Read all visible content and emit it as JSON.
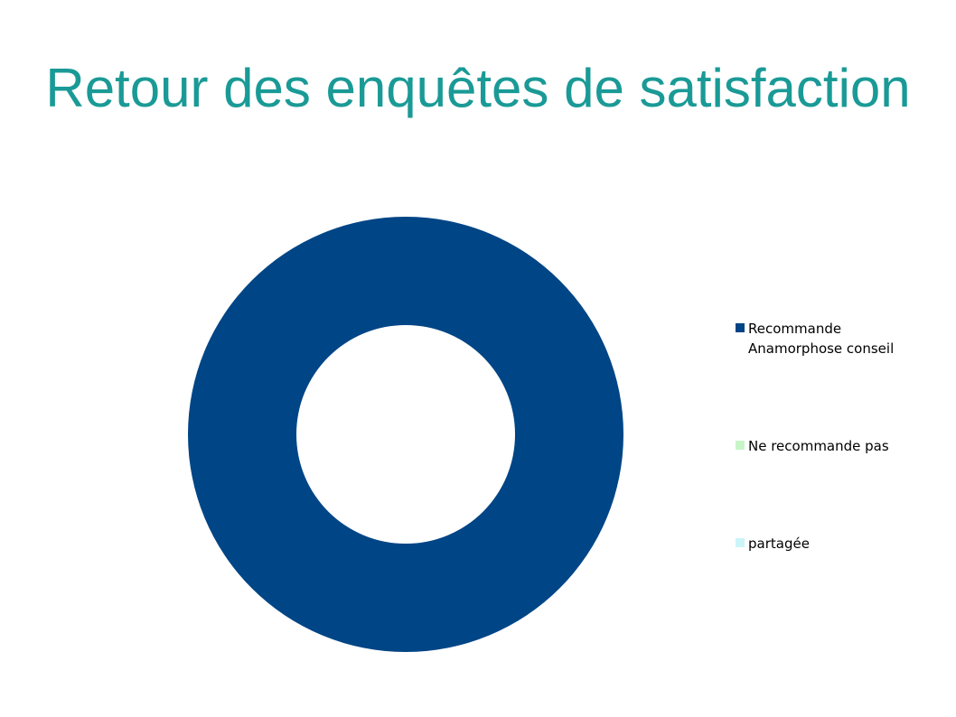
{
  "slide": {
    "title": "Retour des enquêtes de satisfaction"
  },
  "chart_data": {
    "type": "pie",
    "variant": "donut",
    "categories": [
      "Recommande Anamorphose conseil",
      "Ne recommande pas",
      "partagée"
    ],
    "values": [
      100,
      0,
      0
    ],
    "colors": [
      "#004586",
      "#c8f5c8",
      "#ccf5f8"
    ],
    "legend": {
      "placement": "right",
      "entries": [
        "Recommande Anamorphose conseil",
        "Ne recommande pas",
        "partagée"
      ]
    },
    "title": "",
    "xlabel": "",
    "ylabel": ""
  }
}
